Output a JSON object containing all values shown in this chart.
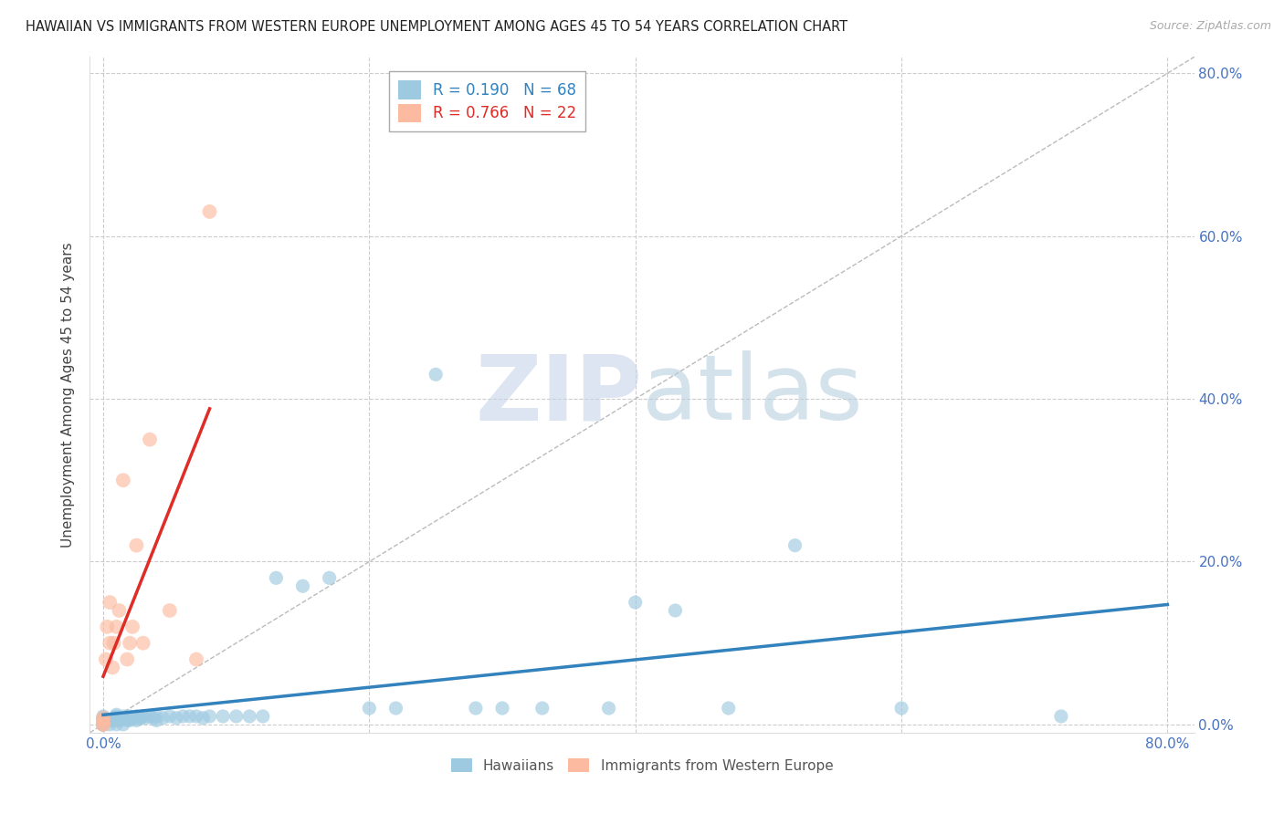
{
  "title": "HAWAIIAN VS IMMIGRANTS FROM WESTERN EUROPE UNEMPLOYMENT AMONG AGES 45 TO 54 YEARS CORRELATION CHART",
  "source": "Source: ZipAtlas.com",
  "ylabel": "Unemployment Among Ages 45 to 54 years",
  "xlim": [
    -0.01,
    0.82
  ],
  "ylim": [
    -0.01,
    0.82
  ],
  "xticks_show": [
    0.0,
    0.8
  ],
  "xticklabels_show": [
    "0.0%",
    "80.0%"
  ],
  "yticks_show": [
    0.0,
    0.2,
    0.4,
    0.6,
    0.8
  ],
  "yticklabels_show": [
    "0.0%",
    "20.0%",
    "40.0%",
    "60.0%",
    "80.0%"
  ],
  "grid_ticks": [
    0.0,
    0.2,
    0.4,
    0.6,
    0.8
  ],
  "legend_R": [
    0.19,
    0.766
  ],
  "legend_N": [
    68,
    22
  ],
  "legend_labels": [
    "Hawaiians",
    "Immigrants from Western Europe"
  ],
  "hawaiian_color": "#9ecae1",
  "western_europe_color": "#fcbba1",
  "hawaiian_line_color": "#3182bd",
  "western_europe_line_color": "#de2d26",
  "ref_line_color": "#bbbbbb",
  "background_color": "#ffffff",
  "grid_color": "#cccccc",
  "tick_color": "#4472c4",
  "watermark_zip_color": "#c5d5e8",
  "watermark_atlas_color": "#b8cfe0",
  "hawaiians_x": [
    0.0,
    0.0,
    0.0,
    0.0,
    0.0,
    0.0,
    0.0,
    0.0,
    0.0,
    0.0,
    0.005,
    0.005,
    0.007,
    0.008,
    0.009,
    0.01,
    0.01,
    0.01,
    0.01,
    0.01,
    0.012,
    0.013,
    0.015,
    0.015,
    0.016,
    0.018,
    0.019,
    0.02,
    0.02,
    0.022,
    0.025,
    0.025,
    0.027,
    0.028,
    0.03,
    0.032,
    0.035,
    0.038,
    0.04,
    0.04,
    0.045,
    0.05,
    0.055,
    0.06,
    0.065,
    0.07,
    0.075,
    0.08,
    0.09,
    0.1,
    0.11,
    0.12,
    0.13,
    0.15,
    0.17,
    0.2,
    0.22,
    0.25,
    0.28,
    0.3,
    0.33,
    0.38,
    0.4,
    0.43,
    0.47,
    0.52,
    0.6,
    0.72
  ],
  "hawaiians_y": [
    0.0,
    0.0,
    0.0,
    0.0,
    0.0,
    0.005,
    0.005,
    0.007,
    0.008,
    0.01,
    0.0,
    0.005,
    0.005,
    0.007,
    0.008,
    0.0,
    0.005,
    0.008,
    0.01,
    0.012,
    0.005,
    0.006,
    0.0,
    0.008,
    0.01,
    0.005,
    0.007,
    0.005,
    0.01,
    0.008,
    0.005,
    0.01,
    0.007,
    0.008,
    0.01,
    0.008,
    0.01,
    0.008,
    0.005,
    0.01,
    0.008,
    0.01,
    0.008,
    0.01,
    0.01,
    0.01,
    0.008,
    0.01,
    0.01,
    0.01,
    0.01,
    0.01,
    0.18,
    0.17,
    0.18,
    0.02,
    0.02,
    0.43,
    0.02,
    0.02,
    0.02,
    0.02,
    0.15,
    0.14,
    0.02,
    0.22,
    0.02,
    0.01
  ],
  "western_europe_x": [
    0.0,
    0.0,
    0.0,
    0.0,
    0.002,
    0.003,
    0.005,
    0.005,
    0.007,
    0.008,
    0.01,
    0.012,
    0.015,
    0.018,
    0.02,
    0.022,
    0.025,
    0.03,
    0.035,
    0.05,
    0.07,
    0.08
  ],
  "western_europe_y": [
    0.0,
    0.0,
    0.005,
    0.008,
    0.08,
    0.12,
    0.1,
    0.15,
    0.07,
    0.1,
    0.12,
    0.14,
    0.3,
    0.08,
    0.1,
    0.12,
    0.22,
    0.1,
    0.35,
    0.14,
    0.08,
    0.63
  ]
}
